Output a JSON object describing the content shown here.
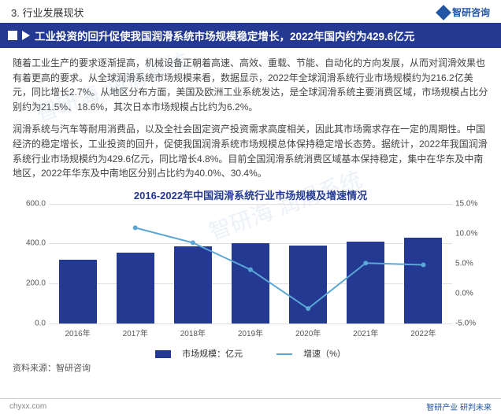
{
  "header": {
    "section": "3. 行业发展现状",
    "brand": "智研咨询"
  },
  "title": "工业投资的回升促使我国润滑系统市场规模稳定增长，2022年国内约为429.6亿元",
  "para1": "随着工业生产的要求逐渐提高，机械设备正朝着高速、高效、重载、节能、自动化的方向发展，从而对润滑效果也有着更高的要求。从全球润滑系统市场规模来看，数据显示，2022年全球润滑系统行业市场规模约为216.2亿美元，同比增长2.7%。从地区分布方面，美国及欧洲工业系统发达，是全球润滑系统主要消费区域，市场规模占比分别约为21.5%、18.6%，其次日本市场规模占比约为6.2%。",
  "para2": "润滑系统与汽车等耐用消费品，以及全社会固定资产投资需求高度相关，因此其市场需求存在一定的周期性。中国经济的稳定增长，工业投资的回升，促使我国润滑系统市场规模总体保持稳定增长态势。据统计，2022年我国润滑系统行业市场规模约为429.6亿元，同比增长4.8%。目前全国润滑系统消费区域基本保持稳定，集中在华东及中南地区，2022年华东及中南地区分别占比约为40.0%、30.4%。",
  "chart": {
    "title": "2016-2022年中国润滑系统行业市场规模及增速情况",
    "type": "bar+line",
    "categories": [
      "2016年",
      "2017年",
      "2018年",
      "2019年",
      "2020年",
      "2021年",
      "2022年"
    ],
    "bar_values": [
      320,
      355,
      385,
      400,
      390,
      410,
      430
    ],
    "bar_color": "#243a92",
    "line_values": [
      null,
      11.0,
      8.5,
      4.0,
      -2.5,
      5.1,
      4.8
    ],
    "line_color": "#5aa7d6",
    "y_left": {
      "min": 0,
      "max": 600,
      "step": 200,
      "fmt": ".1f"
    },
    "y_right": {
      "min": -5,
      "max": 15,
      "step": 5,
      "fmt_pct": true
    },
    "grid_color": "#e0e0e0",
    "background": "#ffffff",
    "legend": {
      "bar": "市场规模：亿元",
      "line": "增速（%）"
    }
  },
  "source": "资料来源：智研咨询",
  "footer": {
    "left": "chyxx.com",
    "right": "智研产业  研判未来"
  },
  "watermark": "智研海 润滑系统"
}
